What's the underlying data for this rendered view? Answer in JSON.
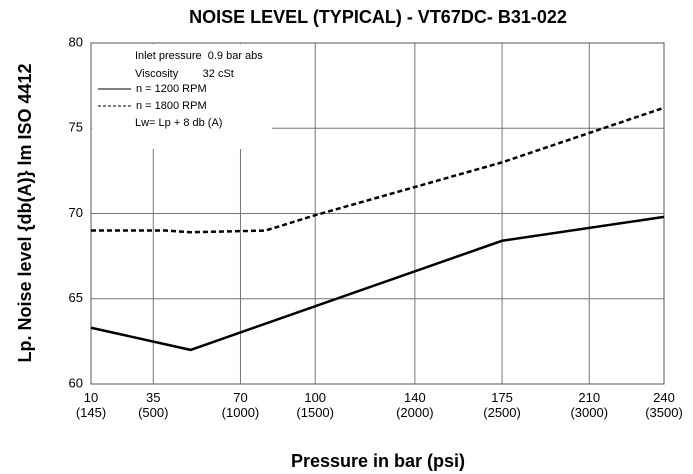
{
  "chart_data": {
    "type": "line",
    "title": "NOISE LEVEL (TYPICAL) - VT67DC- B31-022",
    "xlabel": "Pressure in bar (psi)",
    "ylabel": "Lp. Noise level {db(A)} lm ISO 4412",
    "annotations": [
      "Inlet pressure  0.9 bar abs",
      "Viscosity        32 cSt",
      "Lw= Lp + 8 db (A)"
    ],
    "series": [
      {
        "name": "n = 1200 RPM",
        "color": "#000000",
        "style": "solid",
        "x": [
          10,
          50,
          175,
          240
        ],
        "values": [
          63.3,
          62.0,
          68.4,
          69.8
        ]
      },
      {
        "name": "n = 1800 RPM",
        "color": "#000000",
        "style": "dashed",
        "x": [
          10,
          40,
          50,
          80,
          100,
          175,
          240
        ],
        "values": [
          69.0,
          69.0,
          68.9,
          69.0,
          69.9,
          73.0,
          76.2
        ]
      }
    ],
    "xlim": [
      10,
      240
    ],
    "xticks": [
      {
        "value": 10,
        "label": "10\n(145)"
      },
      {
        "value": 35,
        "label": "35\n(500)"
      },
      {
        "value": 70,
        "label": "70\n(1000)"
      },
      {
        "value": 100,
        "label": "100\n(1500)"
      },
      {
        "value": 140,
        "label": "140\n(2000)"
      },
      {
        "value": 175,
        "label": "175\n(2500)"
      },
      {
        "value": 210,
        "label": "210\n(3000)"
      },
      {
        "value": 240,
        "label": "240\n(3500)"
      }
    ],
    "ylim": [
      60,
      80
    ],
    "yticks": [
      60,
      65,
      70,
      75,
      80
    ],
    "grid": true
  }
}
